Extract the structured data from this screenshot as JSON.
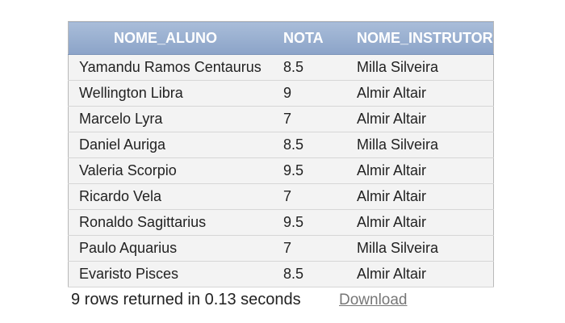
{
  "table": {
    "headers": [
      "NOME_ALUNO",
      "NOTA",
      "NOME_INSTRUTOR"
    ],
    "rows": [
      [
        "Yamandu Ramos Centaurus",
        "8.5",
        "Milla Silveira"
      ],
      [
        "Wellington Libra",
        "9",
        "Almir Altair"
      ],
      [
        "Marcelo Lyra",
        "7",
        "Almir Altair"
      ],
      [
        "Daniel Auriga",
        "8.5",
        "Milla Silveira"
      ],
      [
        "Valeria Scorpio",
        "9.5",
        "Almir Altair"
      ],
      [
        "Ricardo Vela",
        "7",
        "Almir Altair"
      ],
      [
        "Ronaldo Sagittarius",
        "9.5",
        "Almir Altair"
      ],
      [
        "Paulo Aquarius",
        "7",
        "Milla Silveira"
      ],
      [
        "Evaristo Pisces",
        "8.5",
        "Almir Altair"
      ]
    ]
  },
  "footer": {
    "status": "9 rows returned in 0.13 seconds",
    "download_label": "Download"
  },
  "colors": {
    "header_bg": "#98aed0",
    "row_bg": "#f3f3f3"
  }
}
